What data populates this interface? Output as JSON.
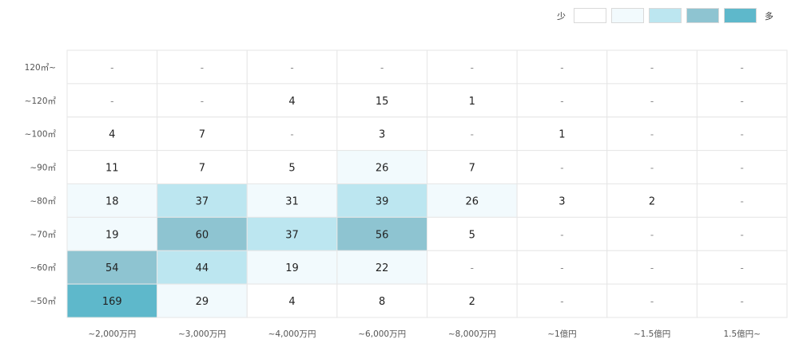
{
  "legend": {
    "min_label": "少",
    "max_label": "多",
    "colors": [
      "#ffffff",
      "#f2fafd",
      "#bce6f0",
      "#8ec4d1",
      "#5eb8cb"
    ]
  },
  "chart_data": {
    "type": "heatmap",
    "title": "",
    "xlabel": "",
    "ylabel": "",
    "empty_marker": "-",
    "x_categories": [
      "~2,000万円",
      "~3,000万円",
      "~4,000万円",
      "~6,000万円",
      "~8,000万円",
      "~1億円",
      "~1.5億円",
      "1.5億円~"
    ],
    "y_categories": [
      "120㎡~",
      "~120㎡",
      "~100㎡",
      "~90㎡",
      "~80㎡",
      "~70㎡",
      "~60㎡",
      "~50㎡"
    ],
    "values": [
      [
        null,
        null,
        null,
        null,
        null,
        null,
        null,
        null
      ],
      [
        null,
        null,
        4,
        15,
        1,
        null,
        null,
        null
      ],
      [
        4,
        7,
        null,
        3,
        null,
        1,
        null,
        null
      ],
      [
        11,
        7,
        5,
        26,
        7,
        null,
        null,
        null
      ],
      [
        18,
        37,
        31,
        39,
        26,
        3,
        2,
        null
      ],
      [
        19,
        60,
        37,
        56,
        5,
        null,
        null,
        null
      ],
      [
        54,
        44,
        19,
        22,
        null,
        null,
        null,
        null
      ],
      [
        169,
        29,
        4,
        8,
        2,
        null,
        null,
        null
      ]
    ],
    "color_levels": [
      [
        0,
        0,
        0,
        0,
        0,
        0,
        0,
        0
      ],
      [
        0,
        0,
        0,
        0,
        0,
        0,
        0,
        0
      ],
      [
        0,
        0,
        0,
        0,
        0,
        0,
        0,
        0
      ],
      [
        0,
        0,
        0,
        1,
        0,
        0,
        0,
        0
      ],
      [
        1,
        2,
        1,
        2,
        1,
        0,
        0,
        0
      ],
      [
        1,
        3,
        2,
        3,
        0,
        0,
        0,
        0
      ],
      [
        3,
        2,
        1,
        1,
        0,
        0,
        0,
        0
      ],
      [
        4,
        1,
        0,
        0,
        0,
        0,
        0,
        0
      ]
    ]
  }
}
